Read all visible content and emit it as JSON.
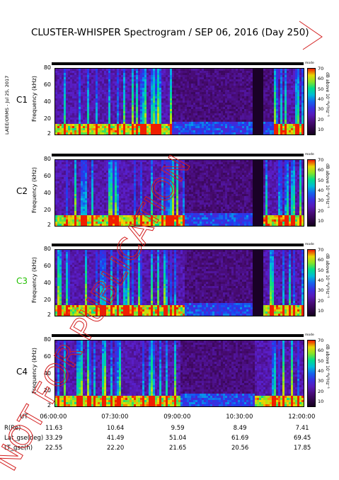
{
  "chart_data": {
    "type": "heatmap",
    "title": "CLUSTER-WHISPER Spectrogram / SEP 06, 2016 (Day 250)",
    "credit": "LAEE/ORMS - Jul 25, 2017",
    "x_ticks": [
      "06:00:00",
      "07:30:00",
      "09:00:00",
      "10:30:00",
      "12:00:00"
    ],
    "y_label": "Frequency (kHz)",
    "y_ticks": [
      80,
      60,
      40,
      20,
      2
    ],
    "ylim": [
      2,
      80
    ],
    "colorbar": {
      "label": "dB above 10⁻⁸V²Hz⁻¹",
      "ticks": [
        70,
        60,
        50,
        40,
        30,
        20,
        10
      ],
      "range": [
        10,
        70
      ]
    },
    "mode_label": "mode",
    "panels": [
      {
        "spacecraft": "C1",
        "label_color": "#000000"
      },
      {
        "spacecraft": "C2",
        "label_color": "#000000"
      },
      {
        "spacecraft": "C3",
        "label_color": "#22c000"
      },
      {
        "spacecraft": "C4",
        "label_color": "#000000"
      }
    ],
    "ephemeris": [
      {
        "name": "UT",
        "values": [
          "06:00:00",
          "07:30:00",
          "09:00:00",
          "10:30:00",
          "12:00:00"
        ]
      },
      {
        "name": "R(Re)",
        "values": [
          "11.63",
          "10.64",
          "9.59",
          "8.49",
          "7.41"
        ]
      },
      {
        "name": "Lat_gse(deg)",
        "values": [
          "33.29",
          "41.49",
          "51.04",
          "61.69",
          "69.45"
        ]
      },
      {
        "name": "LT_gse(h)",
        "values": [
          "22.55",
          "22.20",
          "21.65",
          "20.56",
          "17.85"
        ]
      }
    ]
  },
  "stamp": {
    "text": "NOT FOR PUBLICATION",
    "color": "#d42020"
  }
}
